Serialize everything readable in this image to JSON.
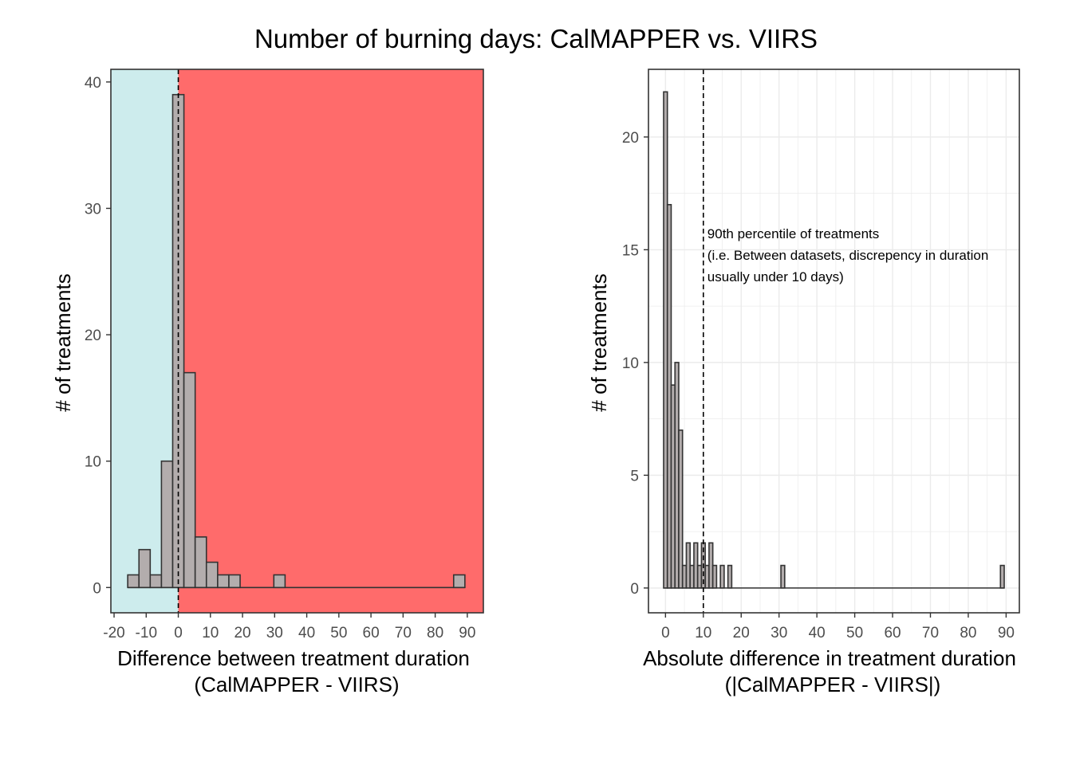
{
  "figure": {
    "title": "Number of burning days: CalMAPPER vs. VIIRS"
  },
  "chart_data": [
    {
      "type": "histogram",
      "xlabel": "Difference between treatment duration",
      "xlabel2": "(CalMAPPER - VIIRS)",
      "ylabel": "# of treatments",
      "xlim": [
        -21,
        95
      ],
      "ylim": [
        -2,
        41
      ],
      "x_ticks": [
        -20,
        -10,
        0,
        10,
        20,
        30,
        40,
        50,
        60,
        70,
        80,
        90
      ],
      "y_ticks": [
        0,
        10,
        20,
        30,
        40
      ],
      "grid": false,
      "bin_width": 3.5,
      "bins": [
        {
          "x": -14.0,
          "count": 1
        },
        {
          "x": -10.5,
          "count": 3
        },
        {
          "x": -7.0,
          "count": 1
        },
        {
          "x": -3.5,
          "count": 10
        },
        {
          "x": 0.0,
          "count": 39
        },
        {
          "x": 3.5,
          "count": 17
        },
        {
          "x": 7.0,
          "count": 4
        },
        {
          "x": 10.5,
          "count": 2
        },
        {
          "x": 14.0,
          "count": 1
        },
        {
          "x": 17.5,
          "count": 1
        },
        {
          "x": 21.0,
          "count": 0
        },
        {
          "x": 24.5,
          "count": 0
        },
        {
          "x": 28.0,
          "count": 0
        },
        {
          "x": 31.5,
          "count": 1
        },
        {
          "x": 35.0,
          "count": 0
        },
        {
          "x": 38.5,
          "count": 0
        },
        {
          "x": 42.0,
          "count": 0
        },
        {
          "x": 45.5,
          "count": 0
        },
        {
          "x": 49.0,
          "count": 0
        },
        {
          "x": 52.5,
          "count": 0
        },
        {
          "x": 56.0,
          "count": 0
        },
        {
          "x": 59.5,
          "count": 0
        },
        {
          "x": 63.0,
          "count": 0
        },
        {
          "x": 66.5,
          "count": 0
        },
        {
          "x": 70.0,
          "count": 0
        },
        {
          "x": 73.5,
          "count": 0
        },
        {
          "x": 77.0,
          "count": 0
        },
        {
          "x": 80.5,
          "count": 0
        },
        {
          "x": 84.0,
          "count": 0
        },
        {
          "x": 87.5,
          "count": 1
        }
      ],
      "shaded_regions": [
        {
          "xmin": -21,
          "xmax": 0,
          "color": "#cdeced"
        },
        {
          "xmin": 0,
          "xmax": 95,
          "color": "#ff6b6b"
        }
      ],
      "vline": {
        "x": 0,
        "style": "dashed"
      },
      "bar_fill": "#b3adad",
      "bar_stroke": "#333333"
    },
    {
      "type": "histogram",
      "xlabel": "Absolute difference in treatment duration",
      "xlabel2": "(|CalMAPPER - VIIRS|)",
      "ylabel": "# of treatments",
      "xlim": [
        -4.5,
        93.5
      ],
      "ylim": [
        -1.1,
        23
      ],
      "x_ticks": [
        0,
        10,
        20,
        30,
        40,
        50,
        60,
        70,
        80,
        90
      ],
      "y_ticks": [
        0,
        5,
        10,
        15,
        20
      ],
      "grid": true,
      "bin_width": 1,
      "bins": [
        {
          "x": 0,
          "count": 22
        },
        {
          "x": 1,
          "count": 17
        },
        {
          "x": 2,
          "count": 9
        },
        {
          "x": 3,
          "count": 10
        },
        {
          "x": 4,
          "count": 7
        },
        {
          "x": 5,
          "count": 1
        },
        {
          "x": 6,
          "count": 2
        },
        {
          "x": 7,
          "count": 1
        },
        {
          "x": 8,
          "count": 2
        },
        {
          "x": 9,
          "count": 1
        },
        {
          "x": 10,
          "count": 2
        },
        {
          "x": 11,
          "count": 1
        },
        {
          "x": 12,
          "count": 2
        },
        {
          "x": 13,
          "count": 1
        },
        {
          "x": 15,
          "count": 1
        },
        {
          "x": 17,
          "count": 1
        },
        {
          "x": 31,
          "count": 1
        },
        {
          "x": 89,
          "count": 1
        }
      ],
      "vline": {
        "x": 10,
        "style": "dashed"
      },
      "annotation": {
        "x": 10,
        "y": 15.5,
        "lines": [
          "90th percentile of treatments",
          "(i.e. Between datasets, discrepency in duration",
          "usually under 10 days)"
        ]
      },
      "bar_fill": "#b3adad",
      "bar_stroke": "#333333",
      "grid_color": "#ebebeb"
    }
  ]
}
